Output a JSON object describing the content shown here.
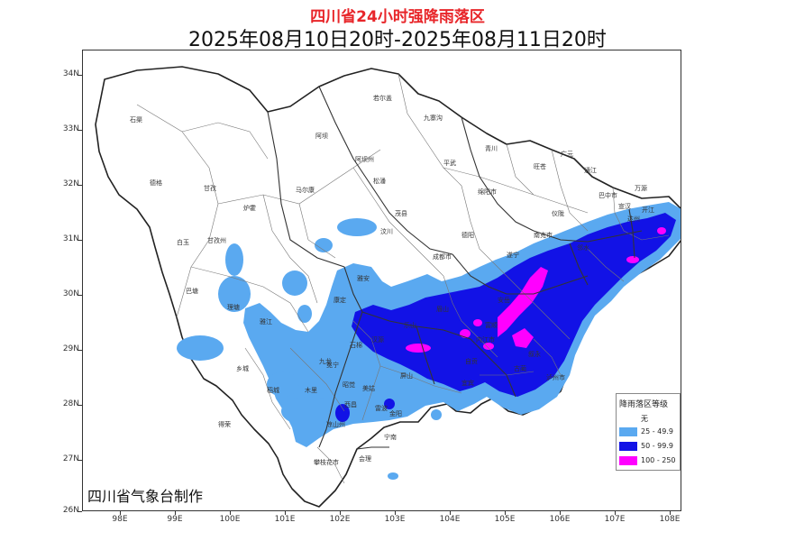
{
  "title": "四川省24小时强降雨落区",
  "subtitle": "2025年08月10日20时-2025年08月11日20时",
  "credit": "四川省气象台制作",
  "axes": {
    "lat_labels": [
      "34N",
      "33N",
      "32N",
      "31N",
      "30N",
      "29N",
      "28N",
      "27N",
      "26N"
    ],
    "lon_labels": [
      "98E",
      "99E",
      "100E",
      "101E",
      "102E",
      "103E",
      "104E",
      "105E",
      "106E",
      "107E",
      "108E"
    ]
  },
  "legend": {
    "title": "降雨落区等级",
    "items": [
      {
        "label": "无",
        "color": "#ffffff"
      },
      {
        "label": "25 - 49.9",
        "color": "#5aa9f0"
      },
      {
        "label": "50 - 99.9",
        "color": "#1212e6"
      },
      {
        "label": "100 - 250",
        "color": "#ff00ff"
      }
    ]
  },
  "places": [
    {
      "name": "石渠"
    },
    {
      "name": "若尔盖"
    },
    {
      "name": "九寨沟"
    },
    {
      "name": "阿坝"
    },
    {
      "name": "德格"
    },
    {
      "name": "甘孜"
    },
    {
      "name": "炉霍"
    },
    {
      "name": "马尔康"
    },
    {
      "name": "白玉"
    },
    {
      "name": "巴塘"
    },
    {
      "name": "理塘"
    },
    {
      "name": "康定"
    },
    {
      "name": "雅江"
    },
    {
      "name": "九龙"
    },
    {
      "name": "木里"
    },
    {
      "name": "稻城"
    },
    {
      "name": "乡城"
    },
    {
      "name": "得荣"
    },
    {
      "name": "甘孜州"
    },
    {
      "name": "阿坝州"
    },
    {
      "name": "绵阳市"
    },
    {
      "name": "成都市"
    },
    {
      "name": "德阳"
    },
    {
      "name": "广元"
    },
    {
      "name": "巴中市"
    },
    {
      "name": "达州"
    },
    {
      "name": "南充市"
    },
    {
      "name": "遂宁"
    },
    {
      "name": "内江市"
    },
    {
      "name": "自贡"
    },
    {
      "name": "宜宾"
    },
    {
      "name": "泸州市"
    },
    {
      "name": "乐山"
    },
    {
      "name": "雅安"
    },
    {
      "name": "眉山"
    },
    {
      "name": "凉山州"
    },
    {
      "name": "西昌"
    },
    {
      "name": "攀枝花市"
    },
    {
      "name": "会理"
    },
    {
      "name": "宁南"
    },
    {
      "name": "汶川"
    },
    {
      "name": "茂县"
    },
    {
      "name": "松潘"
    },
    {
      "name": "平武"
    },
    {
      "name": "青川"
    },
    {
      "name": "旺苍"
    },
    {
      "name": "通江"
    },
    {
      "name": "万源"
    },
    {
      "name": "宣汉"
    },
    {
      "name": "开江"
    },
    {
      "name": "仪陇"
    },
    {
      "name": "邻水"
    },
    {
      "name": "安岳"
    },
    {
      "name": "富顺"
    },
    {
      "name": "叙永"
    },
    {
      "name": "古蔺"
    },
    {
      "name": "屏山"
    },
    {
      "name": "雷波"
    },
    {
      "name": "美姑"
    },
    {
      "name": "昭觉"
    },
    {
      "name": "冕宁"
    },
    {
      "name": "石棉"
    },
    {
      "name": "汉源"
    },
    {
      "name": "金阳"
    }
  ]
}
